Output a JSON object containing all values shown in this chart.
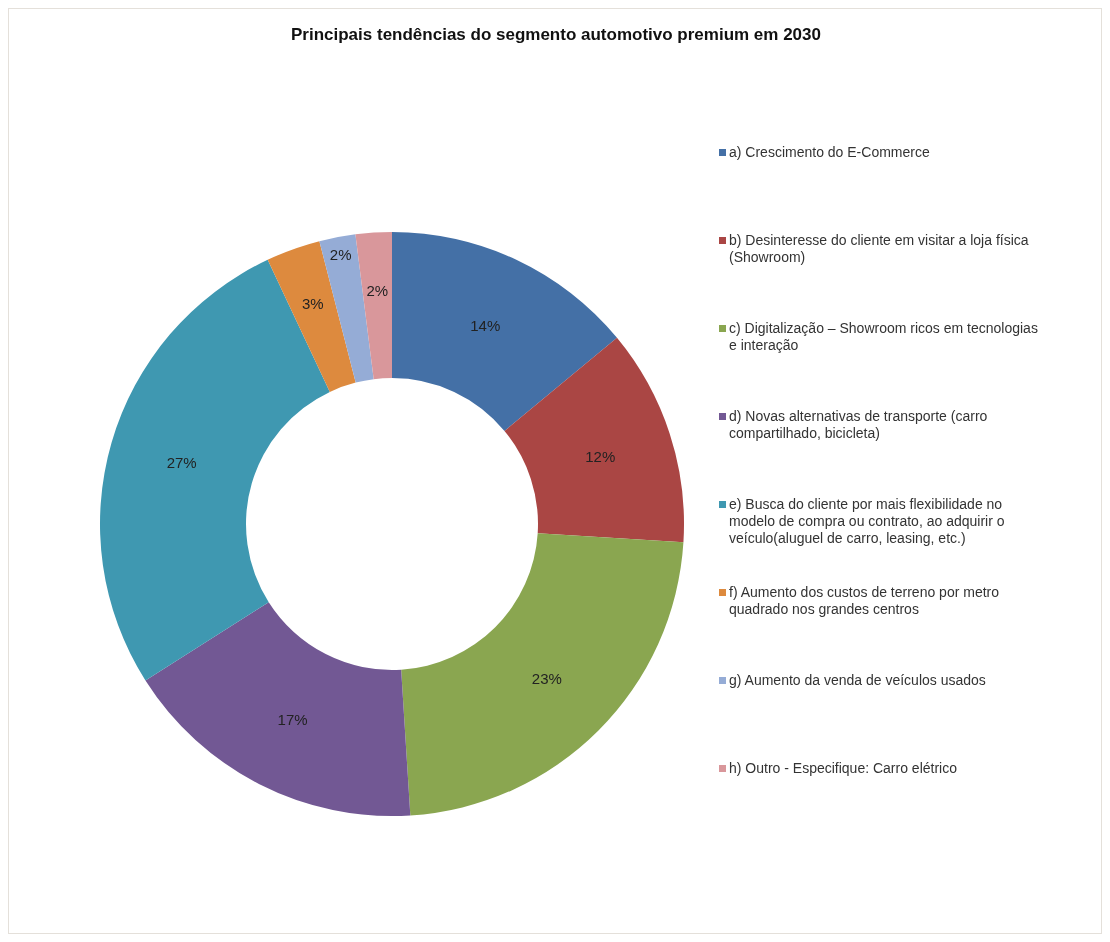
{
  "chart_data": {
    "type": "donut",
    "title": "Principais tendências do segmento automotivo premium em 2030",
    "categories": [
      "a) Crescimento do E-Commerce",
      "b) Desinteresse do cliente em visitar a loja física (Showroom)",
      "c) Digitalização – Showroom ricos em tecnologias e interação",
      "d) Novas alternativas de transporte (carro compartilhado, bicicleta)",
      "e) Busca do cliente por mais flexibilidade no modelo de compra ou contrato, ao adquirir o veículo(aluguel de carro, leasing, etc.)",
      "f) Aumento dos custos de terreno por metro quadrado nos grandes centros",
      "g) Aumento da venda de veículos usados",
      "h) Outro - Especifique: Carro elétrico"
    ],
    "values": [
      14,
      12,
      23,
      17,
      27,
      3,
      2,
      2
    ],
    "value_labels": [
      "14%",
      "12%",
      "23%",
      "17%",
      "27%",
      "3%",
      "2%",
      "2%"
    ],
    "colors": [
      "#4470a6",
      "#aa4644",
      "#8aa650",
      "#725894",
      "#3f98b1",
      "#dd8a3e",
      "#95acd6",
      "#d9979b"
    ],
    "legend": "right"
  }
}
